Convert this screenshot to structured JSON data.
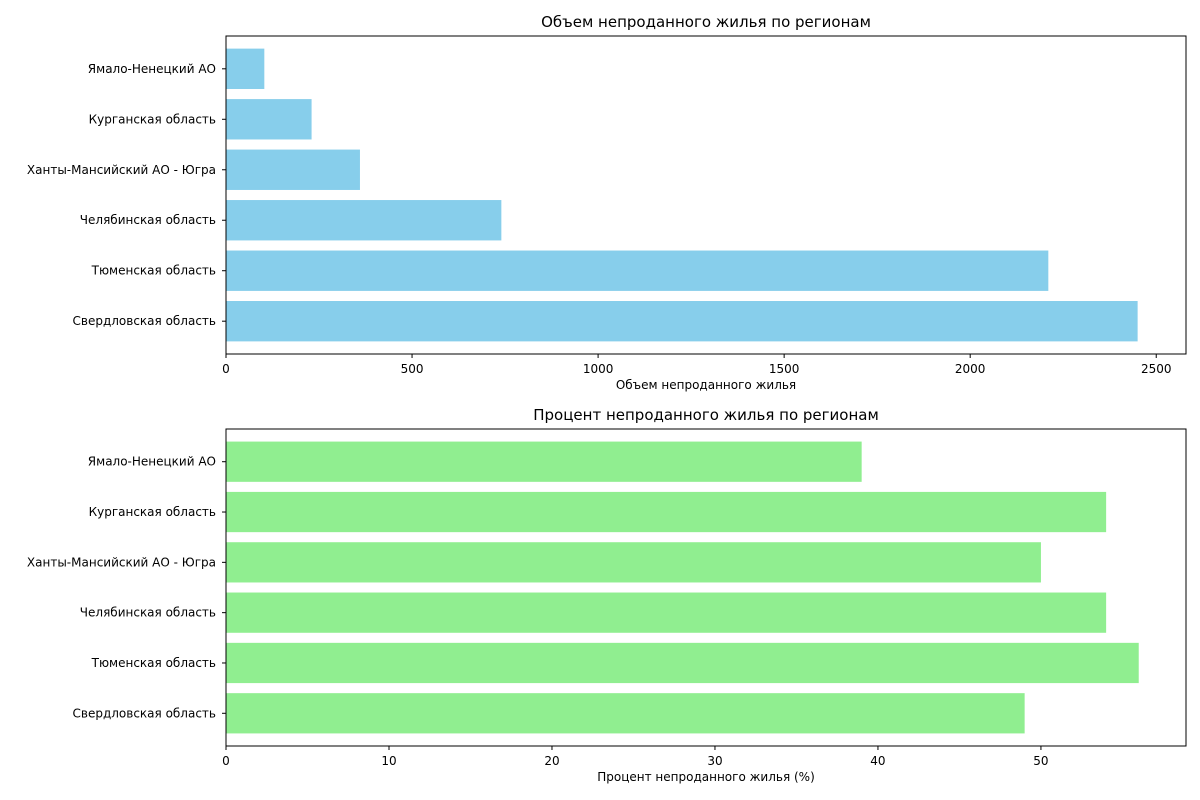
{
  "colors": {
    "volume_bar": "#87ceeb",
    "percent_bar": "#90ee90",
    "axes": "#000000",
    "background": "#ffffff"
  },
  "chart_data": [
    {
      "type": "bar",
      "orientation": "horizontal",
      "title": "Объем непроданного жилья по регионам",
      "xlabel": "Объем непроданного жилья",
      "ylabel": "",
      "categories": [
        "Свердловская область",
        "Тюменская область",
        "Челябинская область",
        "Ханты-Мансийский АО - Югра",
        "Курганская область",
        "Ямало-Ненецкий АО"
      ],
      "values": [
        2450,
        2210,
        740,
        360,
        230,
        103
      ],
      "xlim": [
        0,
        2580
      ],
      "xticks": [
        0,
        500,
        1000,
        1500,
        2000,
        2500
      ],
      "xtick_labels": [
        "0",
        "500",
        "1000",
        "1500",
        "2000",
        "2500"
      ],
      "grid": false,
      "color": "#87ceeb"
    },
    {
      "type": "bar",
      "orientation": "horizontal",
      "title": "Процент непроданного жилья по регионам",
      "xlabel": "Процент непроданного жилья (%)",
      "ylabel": "",
      "categories": [
        "Свердловская область",
        "Тюменская область",
        "Челябинская область",
        "Ханты-Мансийский АО - Югра",
        "Курганская область",
        "Ямало-Ненецкий АО"
      ],
      "values": [
        49,
        56,
        54,
        50,
        54,
        39
      ],
      "xlim": [
        0,
        58.9
      ],
      "xticks": [
        0,
        10,
        20,
        30,
        40,
        50
      ],
      "xtick_labels": [
        "0",
        "10",
        "20",
        "30",
        "40",
        "50"
      ],
      "grid": false,
      "color": "#90ee90"
    }
  ]
}
